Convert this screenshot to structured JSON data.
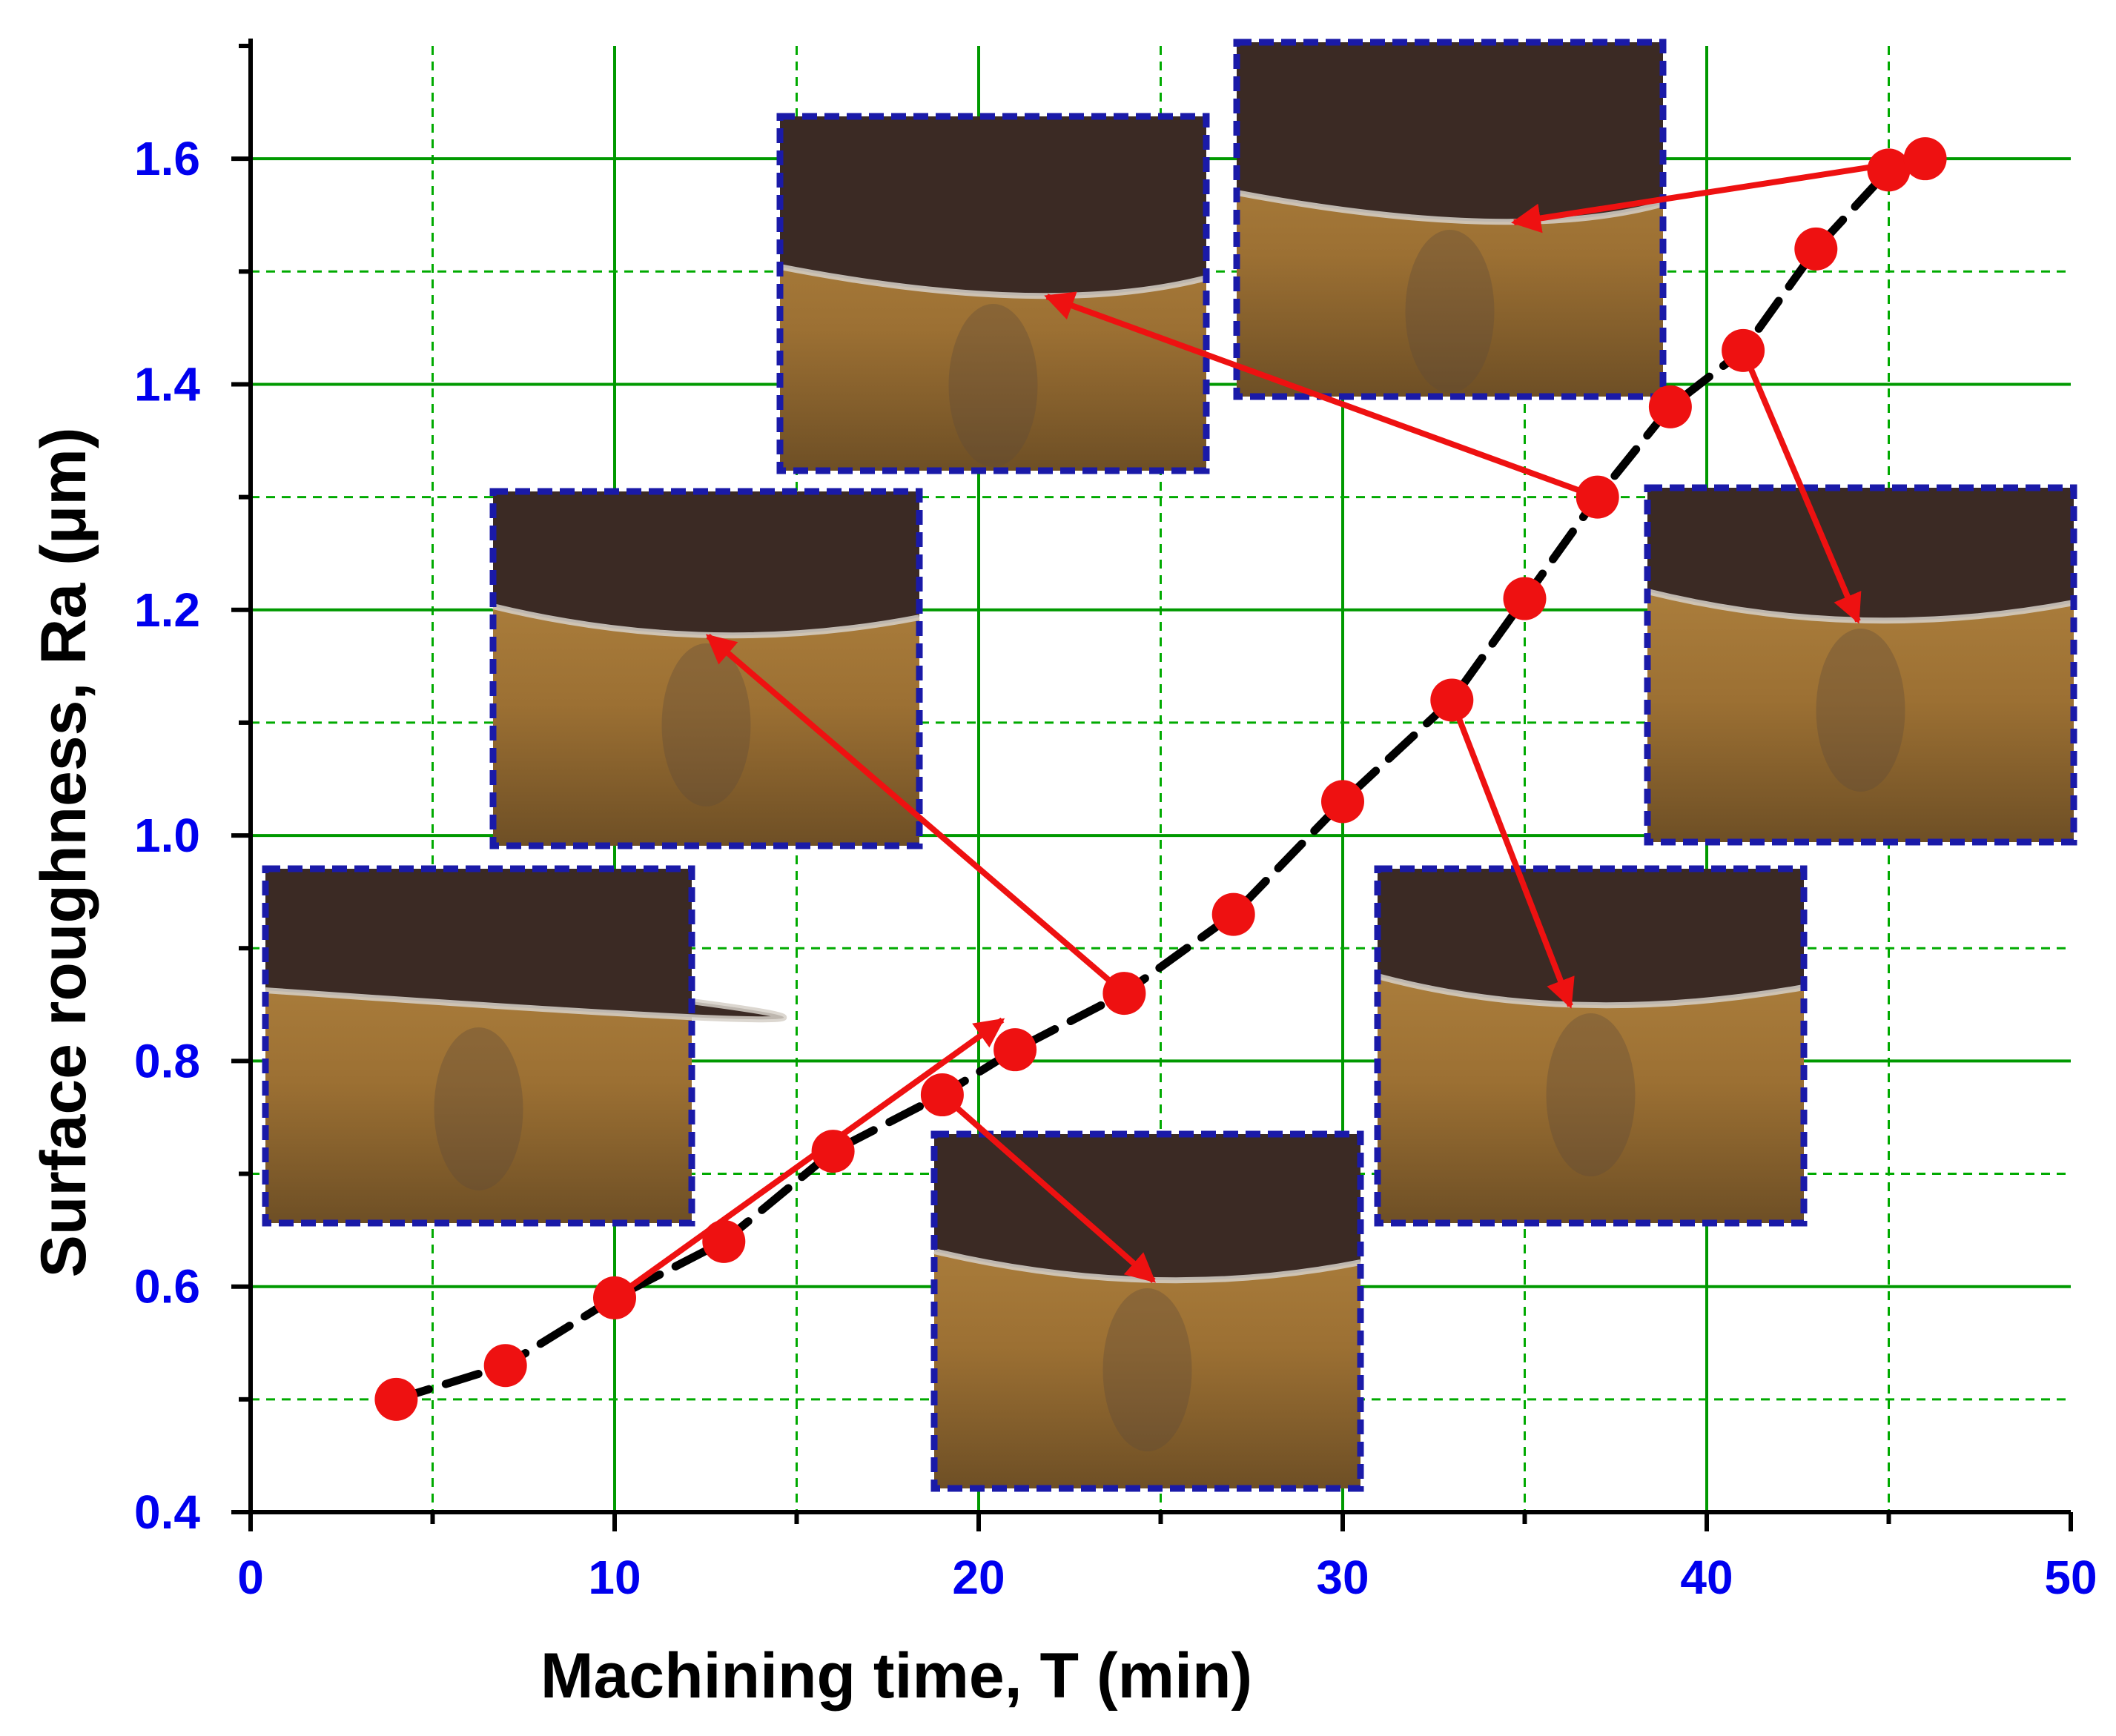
{
  "chart_data": {
    "type": "scatter",
    "xlabel": "Machining time, T (min)",
    "ylabel": "Surface roughness, Ra (μm)",
    "xlim": [
      0,
      50
    ],
    "ylim": [
      0.4,
      1.7
    ],
    "x_ticks": [
      "0",
      "10",
      "20",
      "30",
      "40",
      "50"
    ],
    "y_ticks": [
      "0.4",
      "0.6",
      "0.8",
      "1.0",
      "1.2",
      "1.4",
      "1.6"
    ],
    "grid": true,
    "line_style": "dashed black trend line through points",
    "marker_color": "#ee1111",
    "grid_major_color": "#009900",
    "grid_minor_color": "#00aa00",
    "tick_color": "#0000ee",
    "inset_frame_color": "#1a1aa8",
    "arrow_color": "#ee1111",
    "series": [
      {
        "x": [
          4,
          7,
          10,
          13,
          16,
          19,
          21,
          24,
          27,
          30,
          33,
          35,
          37,
          39,
          41,
          43,
          45,
          46
        ],
        "y": [
          0.5,
          0.53,
          0.59,
          0.64,
          0.72,
          0.77,
          0.81,
          0.86,
          0.93,
          1.03,
          1.12,
          1.21,
          1.3,
          1.38,
          1.43,
          1.52,
          1.59,
          1.6
        ]
      }
    ],
    "annotations": [
      {
        "kind": "tool-wear-micrograph inset",
        "linked_point_x": 10,
        "linked_point_y": 0.59
      },
      {
        "kind": "tool-wear-micrograph inset",
        "linked_point_x": 19,
        "linked_point_y": 0.77
      },
      {
        "kind": "tool-wear-micrograph inset",
        "linked_point_x": 24,
        "linked_point_y": 0.86
      },
      {
        "kind": "tool-wear-micrograph inset",
        "linked_point_x": 33,
        "linked_point_y": 1.12
      },
      {
        "kind": "tool-wear-micrograph inset",
        "linked_point_x": 37,
        "linked_point_y": 1.3
      },
      {
        "kind": "tool-wear-micrograph inset",
        "linked_point_x": 41,
        "linked_point_y": 1.43
      },
      {
        "kind": "tool-wear-micrograph inset",
        "linked_point_x": 46,
        "linked_point_y": 1.6
      }
    ]
  }
}
